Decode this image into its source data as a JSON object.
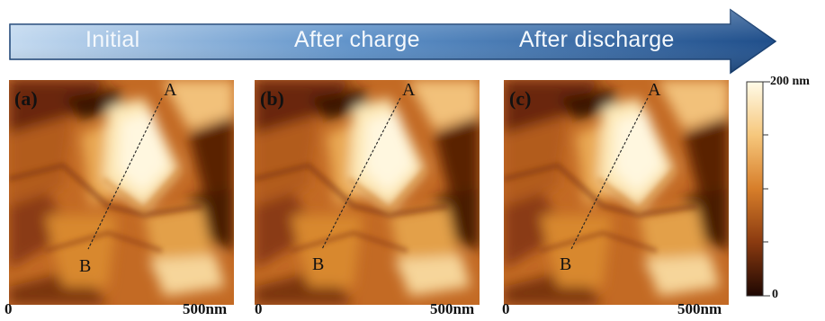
{
  "stages": [
    "Initial",
    "After charge",
    "After discharge"
  ],
  "panels": [
    {
      "label": "(a)",
      "point_a": "A",
      "point_b": "B",
      "axis_start": "0",
      "axis_end": "500nm"
    },
    {
      "label": "(b)",
      "point_a": "A",
      "point_b": "B",
      "axis_start": "0",
      "axis_end": "500nm"
    },
    {
      "label": "(c)",
      "point_a": "A",
      "point_b": "B",
      "axis_start": "0",
      "axis_end": "500nm"
    }
  ],
  "colorbar": {
    "max_label": "200 nm",
    "min_label": "0"
  },
  "colors": {
    "arrow_dark": "#1f4e8a",
    "arrow_light": "#c4daf0",
    "height_low": "#2b0c04",
    "height_mid": "#c8661c",
    "height_high": "#fffbe8"
  }
}
